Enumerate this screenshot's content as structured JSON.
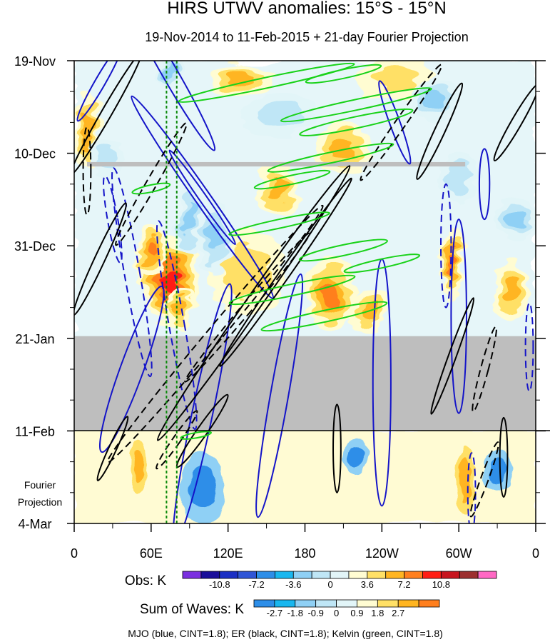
{
  "chart_data": {
    "type": "heatmap",
    "title": "HIRS UTWV anomalies: 15°S - 15°N",
    "subtitle": "19-Nov-2014 to 11-Feb-2015 + 21-day Fourier Projection",
    "x_ticks": [
      "0",
      "60E",
      "120E",
      "180",
      "120W",
      "60W",
      "0"
    ],
    "x_lon": [
      0,
      60,
      120,
      180,
      240,
      300,
      360
    ],
    "y_ticks": [
      "19-Nov",
      "10-Dec",
      "31-Dec",
      "21-Jan",
      "11-Feb",
      "4-Mar"
    ],
    "y_day": [
      0,
      21,
      42,
      63,
      84,
      105
    ],
    "projection_label": [
      "Fourier",
      "Projection"
    ],
    "obs_legend": {
      "label": "Obs: K",
      "tick_labels": [
        "-10.8",
        "-7.2",
        "-3.6",
        "0",
        "3.6",
        "7.2",
        "10.8"
      ],
      "colors": [
        "#7b2fe0",
        "#1a0e9a",
        "#1b2fc4",
        "#2f55d6",
        "#2d8ee8",
        "#19b7ef",
        "#8fd0f5",
        "#bfe6f6",
        "#e2f5f8",
        "#fffcd2",
        "#ffe066",
        "#ffb521",
        "#ff7f1e",
        "#ff1d14",
        "#c8141e",
        "#9c2f2f",
        "#ff68c4"
      ]
    },
    "wave_legend": {
      "label": "Sum of Waves: K",
      "tick_labels": [
        "-2.7",
        "-1.8",
        "-0.9",
        "0",
        "0.9",
        "1.8",
        "2.7"
      ],
      "colors": [
        "#2d8ee8",
        "#19b7ef",
        "#8fd0f5",
        "#bfe6f6",
        "#e2f5f8",
        "#fffcd2",
        "#ffe066",
        "#ffb521",
        "#ff7f1e"
      ]
    },
    "missing_data": {
      "color": "#bebebe",
      "day_ranges": [
        [
          23,
          24
        ],
        [
          62.5,
          84
        ]
      ]
    },
    "reference_lon": [
      72,
      80
    ],
    "footer": "MJO (blue, CINT=1.8); ER (black, CINT=1.8); Kelvin (green, CINT=1.8)",
    "contour_colors": {
      "mjo": "#1414c8",
      "er": "#000000",
      "kelvin": "#19d219",
      "reference": "#0a8a0a"
    },
    "anomaly_blobs": [
      {
        "lon": 75,
        "day": 50,
        "rx": 22,
        "ry": 10,
        "amp": 9
      },
      {
        "lon": 60,
        "day": 43,
        "rx": 12,
        "ry": 6,
        "amp": 7
      },
      {
        "lon": 82,
        "day": 56,
        "rx": 10,
        "ry": 5,
        "amp": 6
      },
      {
        "lon": 10,
        "day": 16,
        "rx": 10,
        "ry": 9,
        "amp": 5
      },
      {
        "lon": 160,
        "day": 29,
        "rx": 16,
        "ry": 6,
        "amp": 6
      },
      {
        "lon": 200,
        "day": 53,
        "rx": 20,
        "ry": 8,
        "amp": 7
      },
      {
        "lon": 230,
        "day": 57,
        "rx": 14,
        "ry": 5,
        "amp": 6
      },
      {
        "lon": 210,
        "day": 20,
        "rx": 22,
        "ry": 6,
        "amp": 6
      },
      {
        "lon": 295,
        "day": 46,
        "rx": 10,
        "ry": 8,
        "amp": 7
      },
      {
        "lon": 340,
        "day": 52,
        "rx": 14,
        "ry": 7,
        "amp": 5
      },
      {
        "lon": 130,
        "day": 4,
        "rx": 25,
        "ry": 4,
        "amp": 5
      },
      {
        "lon": 250,
        "day": 4,
        "rx": 30,
        "ry": 5,
        "amp": 4
      },
      {
        "lon": 135,
        "day": 48,
        "rx": 30,
        "ry": 10,
        "amp": 4
      },
      {
        "lon": 110,
        "day": 40,
        "rx": 14,
        "ry": 8,
        "amp": -5
      },
      {
        "lon": 90,
        "day": 36,
        "rx": 10,
        "ry": 9,
        "amp": -6
      },
      {
        "lon": 75,
        "day": 3,
        "rx": 10,
        "ry": 4,
        "amp": -6
      },
      {
        "lon": 345,
        "day": 36,
        "rx": 14,
        "ry": 5,
        "amp": -6
      },
      {
        "lon": 25,
        "day": 22,
        "rx": 14,
        "ry": 5,
        "amp": -4
      },
      {
        "lon": 160,
        "day": 12,
        "rx": 30,
        "ry": 5,
        "amp": -4
      },
      {
        "lon": 280,
        "day": 9,
        "rx": 18,
        "ry": 5,
        "amp": -5
      },
      {
        "lon": 300,
        "day": 27,
        "rx": 15,
        "ry": 6,
        "amp": -3
      },
      {
        "lon": 50,
        "day": 92,
        "rx": 7,
        "ry": 6,
        "amp": 3
      },
      {
        "lon": 305,
        "day": 95,
        "rx": 7,
        "ry": 8,
        "amp": 3
      },
      {
        "lon": 100,
        "day": 97,
        "rx": 18,
        "ry": 8,
        "amp": -2
      },
      {
        "lon": 220,
        "day": 90,
        "rx": 10,
        "ry": 4,
        "amp": -1.2
      },
      {
        "lon": 330,
        "day": 93,
        "rx": 12,
        "ry": 5,
        "amp": -1.2
      }
    ],
    "mjo_contours": [
      {
        "lon": 100,
        "day": 31,
        "rx": 6,
        "ry": 28,
        "angle": -35,
        "dash": false
      },
      {
        "lon": 100,
        "day": 31,
        "rx": 3,
        "ry": 13,
        "angle": -35,
        "dash": false
      },
      {
        "lon": 75,
        "day": 3,
        "rx": 6,
        "ry": 20,
        "angle": -30,
        "dash": false
      },
      {
        "lon": 20,
        "day": 5,
        "rx": 4,
        "ry": 10,
        "angle": 30,
        "dash": false
      },
      {
        "lon": 45,
        "day": 70,
        "rx": 9,
        "ry": 20,
        "angle": 20,
        "dash": false
      },
      {
        "lon": 100,
        "day": 80,
        "rx": 8,
        "ry": 30,
        "angle": 12,
        "dash": false
      },
      {
        "lon": 160,
        "day": 76,
        "rx": 7,
        "ry": 28,
        "angle": 10,
        "dash": false
      },
      {
        "lon": 240,
        "day": 73,
        "rx": 7,
        "ry": 28,
        "angle": 0,
        "dash": false
      },
      {
        "lon": 300,
        "day": 58,
        "rx": 6,
        "ry": 22,
        "angle": 0,
        "dash": false
      },
      {
        "lon": 250,
        "day": 14,
        "rx": 4,
        "ry": 10,
        "angle": -20,
        "dash": false
      },
      {
        "lon": 320,
        "day": 28,
        "rx": 4,
        "ry": 8,
        "angle": 0,
        "dash": false
      },
      {
        "lon": 45,
        "day": 48,
        "rx": 6,
        "ry": 24,
        "angle": -10,
        "dash": true
      },
      {
        "lon": 80,
        "day": 60,
        "rx": 6,
        "ry": 24,
        "angle": -10,
        "dash": true
      },
      {
        "lon": 30,
        "day": 36,
        "rx": 4,
        "ry": 10,
        "angle": -10,
        "dash": true
      },
      {
        "lon": 290,
        "day": 42,
        "rx": 4,
        "ry": 14,
        "angle": 0,
        "dash": true
      },
      {
        "lon": 355,
        "day": 65,
        "rx": 3,
        "ry": 10,
        "angle": 0,
        "dash": true
      },
      {
        "lon": 310,
        "day": 98,
        "rx": 3,
        "ry": 9,
        "angle": 0,
        "dash": true
      }
    ],
    "er_contours": [
      {
        "lon": 25,
        "day": 12,
        "rx": 4,
        "ry": 16,
        "angle": 30,
        "dash": false
      },
      {
        "lon": 20,
        "day": 45,
        "rx": 4,
        "ry": 14,
        "angle": 25,
        "dash": false
      },
      {
        "lon": 140,
        "day": 55,
        "rx": 6,
        "ry": 38,
        "angle": 35,
        "dash": false
      },
      {
        "lon": 165,
        "day": 48,
        "rx": 4,
        "ry": 26,
        "angle": 35,
        "dash": false
      },
      {
        "lon": 100,
        "day": 84,
        "rx": 4,
        "ry": 10,
        "angle": 35,
        "dash": false
      },
      {
        "lon": 30,
        "day": 88,
        "rx": 3,
        "ry": 8,
        "angle": 25,
        "dash": false
      },
      {
        "lon": 205,
        "day": 88,
        "rx": 3,
        "ry": 10,
        "angle": 0,
        "dash": false
      },
      {
        "lon": 285,
        "day": 16,
        "rx": 4,
        "ry": 12,
        "angle": 25,
        "dash": false
      },
      {
        "lon": 295,
        "day": 67,
        "rx": 3,
        "ry": 14,
        "angle": 20,
        "dash": false
      },
      {
        "lon": 335,
        "day": 90,
        "rx": 3,
        "ry": 9,
        "angle": 0,
        "dash": false
      },
      {
        "lon": 345,
        "day": 14,
        "rx": 4,
        "ry": 10,
        "angle": 30,
        "dash": false
      },
      {
        "lon": 10,
        "day": 25,
        "rx": 3,
        "ry": 10,
        "angle": 0,
        "dash": true
      },
      {
        "lon": 60,
        "day": 28,
        "rx": 4,
        "ry": 16,
        "angle": 30,
        "dash": true
      },
      {
        "lon": 110,
        "day": 62,
        "rx": 6,
        "ry": 38,
        "angle": 40,
        "dash": true
      },
      {
        "lon": 135,
        "day": 56,
        "rx": 4,
        "ry": 22,
        "angle": 40,
        "dash": true
      },
      {
        "lon": 255,
        "day": 14,
        "rx": 4,
        "ry": 16,
        "angle": 35,
        "dash": true
      },
      {
        "lon": 320,
        "day": 70,
        "rx": 3,
        "ry": 10,
        "angle": 15,
        "dash": true
      },
      {
        "lon": 320,
        "day": 95,
        "rx": 3,
        "ry": 9,
        "angle": 20,
        "dash": true
      },
      {
        "lon": 80,
        "day": 86,
        "rx": 3,
        "ry": 8,
        "angle": 35,
        "dash": true
      }
    ],
    "kelvin_contours": [
      {
        "lon": 150,
        "day": 5,
        "rx": 70,
        "ry": 1.2,
        "angle": -12
      },
      {
        "lon": 210,
        "day": 3,
        "rx": 30,
        "ry": 1,
        "angle": -12
      },
      {
        "lon": 220,
        "day": 10,
        "rx": 60,
        "ry": 1.2,
        "angle": -12
      },
      {
        "lon": 220,
        "day": 14,
        "rx": 45,
        "ry": 1.3,
        "angle": -12
      },
      {
        "lon": 200,
        "day": 22,
        "rx": 50,
        "ry": 1.2,
        "angle": -12
      },
      {
        "lon": 170,
        "day": 27,
        "rx": 30,
        "ry": 1,
        "angle": -12
      },
      {
        "lon": 160,
        "day": 37,
        "rx": 40,
        "ry": 1,
        "angle": -12
      },
      {
        "lon": 210,
        "day": 43,
        "rx": 35,
        "ry": 1.2,
        "angle": -12
      },
      {
        "lon": 170,
        "day": 52,
        "rx": 50,
        "ry": 1.3,
        "angle": -12
      },
      {
        "lon": 195,
        "day": 58,
        "rx": 50,
        "ry": 1.3,
        "angle": -12
      },
      {
        "lon": 240,
        "day": 46,
        "rx": 30,
        "ry": 1,
        "angle": -12
      },
      {
        "lon": 60,
        "day": 29,
        "rx": 15,
        "ry": 0.8,
        "angle": -12
      },
      {
        "lon": 95,
        "day": 85,
        "rx": 12,
        "ry": 0.6,
        "angle": -10
      }
    ]
  }
}
